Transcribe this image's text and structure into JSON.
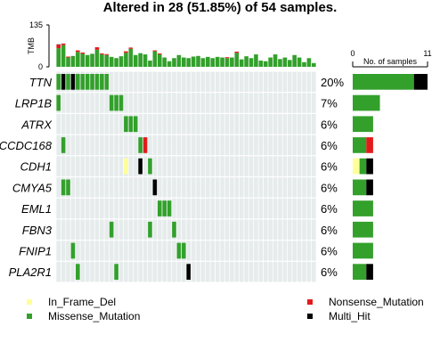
{
  "chart_data": {
    "type": "heatmap",
    "title": "Altered in 28 (51.85%) of 54 samples.",
    "tmb_axis": {
      "label": "TMB",
      "ticks": [
        0,
        135
      ],
      "ylim": [
        0,
        135
      ]
    },
    "count_axis": {
      "label": "No. of samples",
      "ticks": [
        0,
        11
      ],
      "xlim": [
        0,
        11
      ]
    },
    "colors": {
      "In_Frame_Del": "#ffff99",
      "Missense_Mutation": "#33a02c",
      "Nonsense_Mutation": "#e31a1c",
      "Multi_Hit": "#000000",
      "background": "#e6ebeb",
      "tmb_extra": "#1f78b4"
    },
    "legend": {
      "left": [
        "In_Frame_Del",
        "Missense_Mutation"
      ],
      "right": [
        "Nonsense_Mutation",
        "Multi_Hit"
      ]
    },
    "n_columns": 54,
    "tmb": [
      [
        60,
        12,
        1
      ],
      [
        70,
        5,
        0
      ],
      [
        30,
        3,
        0
      ],
      [
        35,
        0,
        0
      ],
      [
        48,
        5,
        0
      ],
      [
        42,
        4,
        0
      ],
      [
        38,
        0,
        0
      ],
      [
        42,
        0,
        0
      ],
      [
        55,
        8,
        0
      ],
      [
        40,
        3,
        0
      ],
      [
        38,
        3,
        0
      ],
      [
        32,
        0,
        0
      ],
      [
        28,
        0,
        0
      ],
      [
        34,
        0,
        0
      ],
      [
        45,
        5,
        0
      ],
      [
        58,
        4,
        0
      ],
      [
        38,
        0,
        0
      ],
      [
        44,
        0,
        0
      ],
      [
        40,
        0,
        0
      ],
      [
        20,
        0,
        0
      ],
      [
        50,
        3,
        0
      ],
      [
        40,
        3,
        0
      ],
      [
        30,
        0,
        0
      ],
      [
        18,
        0,
        0
      ],
      [
        28,
        0,
        0
      ],
      [
        38,
        0,
        0
      ],
      [
        30,
        0,
        0
      ],
      [
        28,
        0,
        0
      ],
      [
        33,
        0,
        0
      ],
      [
        35,
        0,
        0
      ],
      [
        28,
        0,
        0
      ],
      [
        32,
        0,
        0
      ],
      [
        28,
        0,
        0
      ],
      [
        32,
        0,
        0
      ],
      [
        30,
        0,
        0
      ],
      [
        28,
        3,
        0
      ],
      [
        30,
        0,
        0
      ],
      [
        45,
        4,
        0
      ],
      [
        24,
        0,
        0
      ],
      [
        34,
        0,
        0
      ],
      [
        28,
        0,
        0
      ],
      [
        40,
        0,
        0
      ],
      [
        20,
        0,
        0
      ],
      [
        18,
        0,
        0
      ],
      [
        30,
        0,
        0
      ],
      [
        40,
        0,
        0
      ],
      [
        25,
        0,
        0
      ],
      [
        30,
        0,
        0
      ],
      [
        22,
        0,
        0
      ],
      [
        38,
        0,
        0
      ],
      [
        30,
        0,
        0
      ],
      [
        15,
        0,
        0
      ],
      [
        28,
        0,
        0
      ],
      [
        12,
        0,
        0
      ]
    ],
    "genes": [
      {
        "name": "TTN",
        "pct": "20%",
        "cells": [
          [
            0,
            "Missense_Mutation"
          ],
          [
            1,
            "Multi_Hit"
          ],
          [
            2,
            "Missense_Mutation"
          ],
          [
            3,
            "Multi_Hit"
          ],
          [
            4,
            "Missense_Mutation"
          ],
          [
            5,
            "Missense_Mutation"
          ],
          [
            6,
            "Missense_Mutation"
          ],
          [
            7,
            "Missense_Mutation"
          ],
          [
            8,
            "Missense_Mutation"
          ],
          [
            9,
            "Missense_Mutation"
          ],
          [
            10,
            "Missense_Mutation"
          ]
        ],
        "counts": {
          "Missense_Mutation": 9,
          "Multi_Hit": 2
        }
      },
      {
        "name": "LRP1B",
        "pct": "7%",
        "cells": [
          [
            0,
            "Missense_Mutation"
          ],
          [
            11,
            "Missense_Mutation"
          ],
          [
            12,
            "Missense_Mutation"
          ],
          [
            13,
            "Missense_Mutation"
          ]
        ],
        "counts": {
          "Missense_Mutation": 4
        }
      },
      {
        "name": "ATRX",
        "pct": "6%",
        "cells": [
          [
            14,
            "Missense_Mutation"
          ],
          [
            15,
            "Missense_Mutation"
          ],
          [
            16,
            "Missense_Mutation"
          ]
        ],
        "counts": {
          "Missense_Mutation": 3
        }
      },
      {
        "name": "CCDC168",
        "pct": "6%",
        "cells": [
          [
            1,
            "Missense_Mutation"
          ],
          [
            17,
            "Missense_Mutation"
          ],
          [
            18,
            "Nonsense_Mutation"
          ]
        ],
        "counts": {
          "Missense_Mutation": 2,
          "Nonsense_Mutation": 1
        }
      },
      {
        "name": "CDH1",
        "pct": "6%",
        "cells": [
          [
            14,
            "In_Frame_Del"
          ],
          [
            17,
            "Multi_Hit"
          ],
          [
            19,
            "Missense_Mutation"
          ]
        ],
        "counts": {
          "In_Frame_Del": 1,
          "Missense_Mutation": 1,
          "Multi_Hit": 1
        }
      },
      {
        "name": "CMYA5",
        "pct": "6%",
        "cells": [
          [
            1,
            "Missense_Mutation"
          ],
          [
            2,
            "Missense_Mutation"
          ],
          [
            20,
            "Multi_Hit"
          ]
        ],
        "counts": {
          "Missense_Mutation": 2,
          "Multi_Hit": 1
        }
      },
      {
        "name": "EML1",
        "pct": "6%",
        "cells": [
          [
            21,
            "Missense_Mutation"
          ],
          [
            22,
            "Missense_Mutation"
          ],
          [
            23,
            "Missense_Mutation"
          ]
        ],
        "counts": {
          "Missense_Mutation": 3
        }
      },
      {
        "name": "FBN3",
        "pct": "6%",
        "cells": [
          [
            11,
            "Missense_Mutation"
          ],
          [
            19,
            "Missense_Mutation"
          ],
          [
            24,
            "Missense_Mutation"
          ]
        ],
        "counts": {
          "Missense_Mutation": 3
        }
      },
      {
        "name": "FNIP1",
        "pct": "6%",
        "cells": [
          [
            3,
            "Missense_Mutation"
          ],
          [
            25,
            "Missense_Mutation"
          ],
          [
            26,
            "Missense_Mutation"
          ]
        ],
        "counts": {
          "Missense_Mutation": 3
        }
      },
      {
        "name": "PLA2R1",
        "pct": "6%",
        "cells": [
          [
            4,
            "Missense_Mutation"
          ],
          [
            12,
            "Missense_Mutation"
          ],
          [
            27,
            "Multi_Hit"
          ]
        ],
        "counts": {
          "Missense_Mutation": 2,
          "Multi_Hit": 1
        }
      }
    ]
  }
}
